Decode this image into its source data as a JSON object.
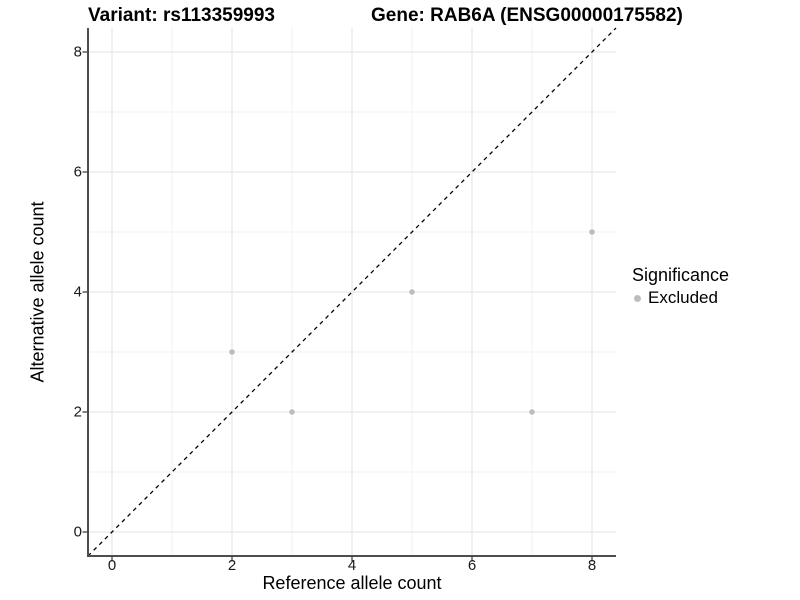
{
  "chart_data": {
    "type": "scatter",
    "title_left": "Variant: rs113359993",
    "title_right": "Gene: RAB6A (ENSG00000175582)",
    "xlabel": "Reference allele count",
    "ylabel": "Alternative allele count",
    "xlim": [
      -0.4,
      8.4
    ],
    "ylim": [
      -0.4,
      8.4
    ],
    "x_ticks": [
      0,
      2,
      4,
      6,
      8
    ],
    "y_ticks": [
      0,
      2,
      4,
      6,
      8
    ],
    "x_minor": [
      1,
      3,
      5,
      7
    ],
    "y_minor": [
      1,
      3,
      5,
      7
    ],
    "grid": true,
    "points": [
      {
        "x": 2,
        "y": 3,
        "significance": "Excluded"
      },
      {
        "x": 3,
        "y": 2,
        "significance": "Excluded"
      },
      {
        "x": 5,
        "y": 4,
        "significance": "Excluded"
      },
      {
        "x": 7,
        "y": 2,
        "significance": "Excluded"
      },
      {
        "x": 8,
        "y": 5,
        "significance": "Excluded"
      }
    ],
    "reference_line": {
      "kind": "identity",
      "style": "dashed",
      "color": "#000000"
    },
    "legend": {
      "title": "Significance",
      "position": "right",
      "items": [
        {
          "label": "Excluded",
          "color": "#bdbdbd",
          "marker": "circle"
        }
      ]
    },
    "colors": {
      "background": "#ffffff",
      "point": "#bdbdbd",
      "grid_major": "#e3e3e3",
      "grid_minor": "#f1f1f1",
      "axis_line": "#4d4d4d",
      "tick_mark": "#333333",
      "text": "#000000"
    }
  }
}
